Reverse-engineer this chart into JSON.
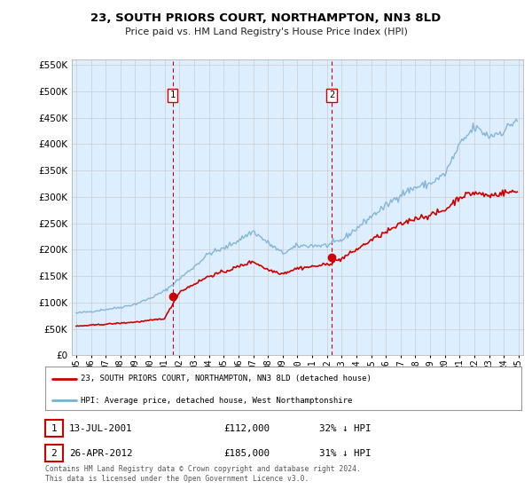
{
  "title": "23, SOUTH PRIORS COURT, NORTHAMPTON, NN3 8LD",
  "subtitle": "Price paid vs. HM Land Registry's House Price Index (HPI)",
  "legend_line1": "23, SOUTH PRIORS COURT, NORTHAMPTON, NN3 8LD (detached house)",
  "legend_line2": "HPI: Average price, detached house, West Northamptonshire",
  "footer1": "Contains HM Land Registry data © Crown copyright and database right 2024.",
  "footer2": "This data is licensed under the Open Government Licence v3.0.",
  "sale1_label": "1",
  "sale1_date": "13-JUL-2001",
  "sale1_price": "£112,000",
  "sale1_hpi": "32% ↓ HPI",
  "sale2_label": "2",
  "sale2_date": "26-APR-2012",
  "sale2_price": "£185,000",
  "sale2_hpi": "31% ↓ HPI",
  "red_color": "#cc0000",
  "blue_color": "#7ab0d4",
  "dashed_color": "#cc0000",
  "background_color": "#ffffff",
  "chart_bg": "#ddeeff",
  "grid_color": "#cccccc",
  "ylim": [
    0,
    560000
  ],
  "yticks": [
    0,
    50000,
    100000,
    150000,
    200000,
    250000,
    300000,
    350000,
    400000,
    450000,
    500000,
    550000
  ],
  "sale1_x": 2001.54,
  "sale1_y": 112000,
  "sale2_x": 2012.33,
  "sale2_y": 185000,
  "xmin": 1995.0,
  "xmax": 2025.3
}
